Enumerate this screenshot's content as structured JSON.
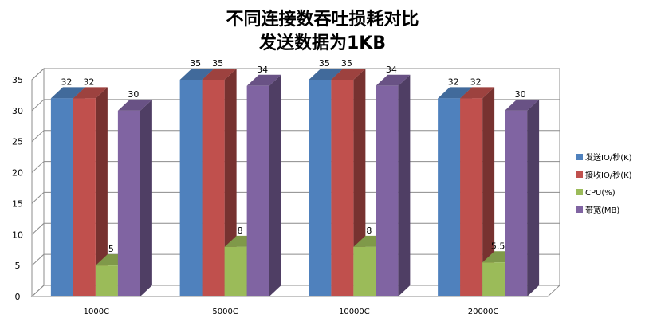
{
  "title_line1": "不同连接数吞吐损耗对比",
  "title_line2": "发送数据为1KB",
  "chart_data": {
    "type": "bar",
    "title": "不同连接数吞吐损耗对比 发送数据为1KB",
    "categories": [
      "1000C",
      "5000C",
      "10000C",
      "20000C"
    ],
    "series": [
      {
        "name": "发送IO/秒(K)",
        "color": "#4f81bd",
        "values": [
          32,
          35,
          35,
          32
        ]
      },
      {
        "name": "接收IO/秒(K)",
        "color": "#c0504d",
        "values": [
          32,
          35,
          35,
          32
        ]
      },
      {
        "name": "CPU(%)",
        "color": "#9bbb59",
        "values": [
          5,
          8,
          8,
          5.5
        ]
      },
      {
        "name": "带宽(MB)",
        "color": "#8064a2",
        "values": [
          30,
          34,
          34,
          30
        ]
      }
    ],
    "y_ticks": [
      0,
      5,
      10,
      15,
      20,
      25,
      30,
      35
    ],
    "ylim": [
      0,
      35
    ],
    "grid": true,
    "projection": "3d",
    "legend_position": "right"
  }
}
